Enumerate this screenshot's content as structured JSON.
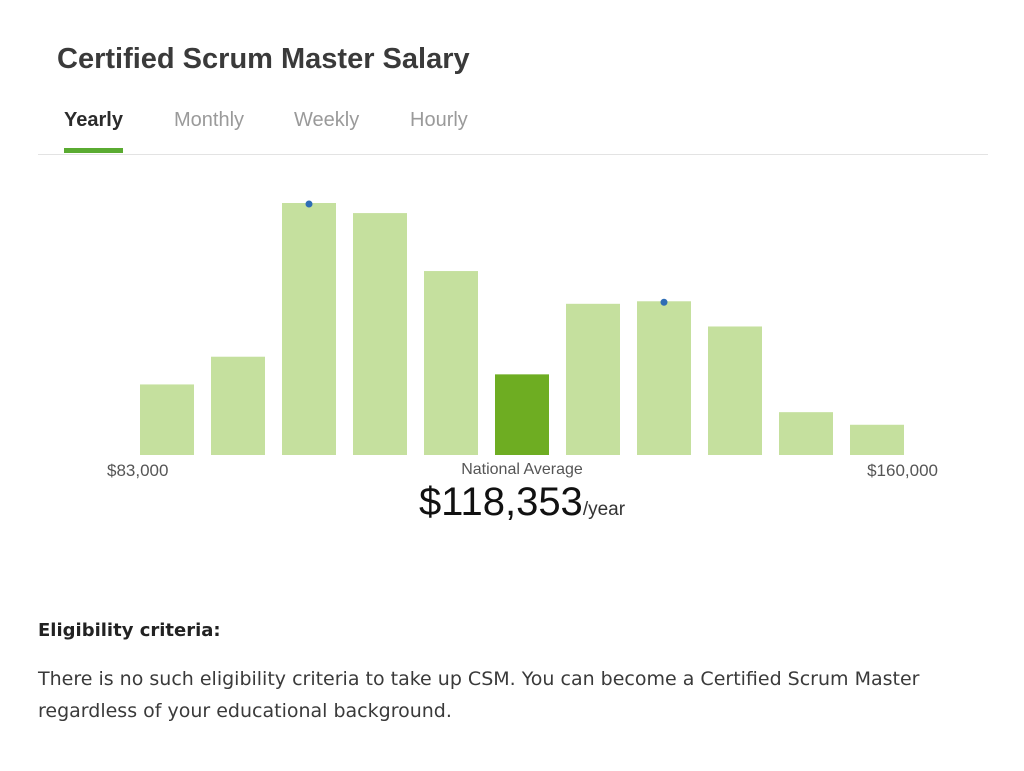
{
  "widget": {
    "title": "Certified Scrum Master Salary",
    "tabs": [
      {
        "label": "Yearly",
        "active": true
      },
      {
        "label": "Monthly",
        "active": false
      },
      {
        "label": "Weekly",
        "active": false
      },
      {
        "label": "Hourly",
        "active": false
      }
    ],
    "average": {
      "caption": "National Average",
      "value": "$118,353",
      "unit": "/year"
    }
  },
  "chart_data": {
    "type": "bar",
    "title": "",
    "xlabel": "",
    "ylabel": "",
    "x_min_label": "$83,000",
    "x_max_label": "$160,000",
    "values": [
      28,
      39,
      100,
      96,
      73,
      32,
      60,
      61,
      51,
      17,
      12
    ],
    "highlight_index": 5,
    "marker_indices": [
      2,
      7
    ],
    "ylim": [
      0,
      100
    ],
    "grid": false,
    "colors": {
      "bar": "#c5e09e",
      "highlight": "#6ead22",
      "marker": "#2e6db5"
    }
  },
  "article": {
    "heading": "Eligibility criteria:",
    "body": "There is no such eligibility criteria to take up CSM. You can become a Certified Scrum Master regardless of your educational background."
  }
}
